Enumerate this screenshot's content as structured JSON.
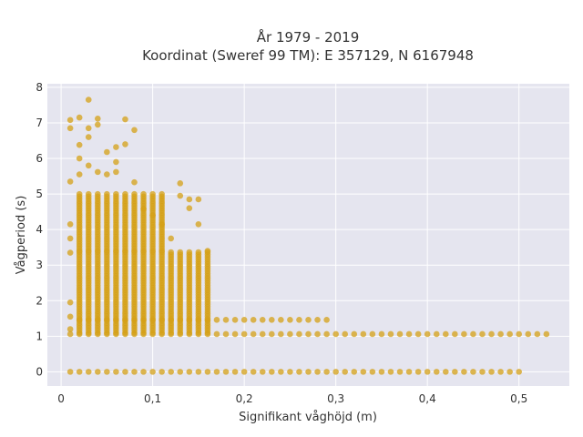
{
  "chart_data": {
    "type": "scatter",
    "title": [
      "År 1979 - 2019",
      "Koordinat (Sweref 99 TM): E 357129, N 6167948"
    ],
    "xlabel": "Signifikant våghöjd (m)",
    "ylabel": "Vågperiod (s)",
    "xlim": [
      -0.015,
      0.555
    ],
    "ylim": [
      -0.4,
      8.1
    ],
    "x_ticks": [
      0,
      0.1,
      0.2,
      0.3,
      0.4,
      0.5
    ],
    "x_tick_labels": [
      "0",
      "0,1",
      "0,2",
      "0,3",
      "0,4",
      "0,5"
    ],
    "y_ticks": [
      0,
      1,
      2,
      3,
      4,
      5,
      6,
      7,
      8
    ],
    "y_tick_labels": [
      "0",
      "1",
      "2",
      "3",
      "4",
      "5",
      "6",
      "7",
      "8"
    ],
    "grid": true,
    "legend": "none",
    "colors": {
      "marker": "#D4A017",
      "plot_bg": "#E5E5EF",
      "grid": "#FFFFFF",
      "text": "#333333"
    },
    "series": [
      {
        "x_range": [
          0.01,
          0.5
        ],
        "x_step": 0.01,
        "y_values": [
          0
        ]
      },
      {
        "x_range": [
          0.01,
          0.53
        ],
        "x_step": 0.01,
        "y_values": [
          1.06
        ]
      },
      {
        "x_range": [
          0.02,
          0.29
        ],
        "x_step": 0.01,
        "y_values": [
          1.46
        ]
      },
      {
        "x_range": [
          0.02,
          0.16
        ],
        "x_step": 0.01,
        "y_band": [
          1.1,
          3.4
        ]
      },
      {
        "x_range": [
          0.02,
          0.11
        ],
        "x_step": 0.01,
        "y_band": [
          3.4,
          5.0
        ]
      },
      {
        "x": [
          0.01,
          0.01,
          0.01,
          0.01,
          0.01,
          0.01,
          0.01,
          0.01,
          0.01,
          0.02,
          0.02,
          0.02,
          0.02,
          0.03,
          0.03,
          0.03,
          0.03,
          0.04,
          0.04,
          0.04,
          0.05,
          0.05,
          0.06,
          0.06,
          0.06,
          0.07,
          0.07,
          0.08,
          0.08,
          0.09,
          0.1,
          0.11,
          0.12,
          0.13,
          0.13,
          0.14,
          0.14,
          0.15,
          0.15,
          0.16
        ],
        "y": [
          6.85,
          7.08,
          5.35,
          4.15,
          3.75,
          3.35,
          1.95,
          1.55,
          1.2,
          7.15,
          6.38,
          6.0,
          5.55,
          7.65,
          6.85,
          6.6,
          5.8,
          7.12,
          6.95,
          5.62,
          6.18,
          5.55,
          6.32,
          5.9,
          5.62,
          7.1,
          6.4,
          6.8,
          5.33,
          4.58,
          4.4,
          4.15,
          3.75,
          5.3,
          4.95,
          4.85,
          4.6,
          4.85,
          4.15,
          3.4
        ]
      }
    ]
  }
}
